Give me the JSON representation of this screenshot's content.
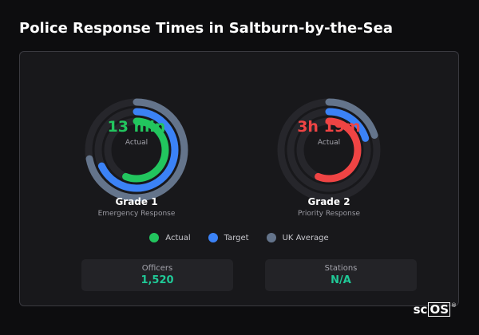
{
  "page": {
    "title": "Police Response Times in Saltburn-by-the-Sea"
  },
  "colors": {
    "actual_grade_1": "#22c55e",
    "actual_grade_2": "#ef4444",
    "target": "#3b82f6",
    "uk_average": "#64748b",
    "stat_value": "#20c997"
  },
  "gauges": [
    {
      "name": "Grade 1",
      "description": "Emergency Response",
      "value_text": "13 min",
      "value_label": "Actual",
      "rings": {
        "uk_average_fraction": 0.72,
        "target_fraction": 0.68,
        "actual_fraction": 0.56
      }
    },
    {
      "name": "Grade 2",
      "description": "Priority Response",
      "value_text": "3h 19m",
      "value_label": "Actual",
      "rings": {
        "uk_average_fraction": 0.2,
        "target_fraction": 0.2,
        "actual_fraction": 0.56
      }
    }
  ],
  "legend": [
    {
      "label": "Actual",
      "color": "#22c55e",
      "icon": "actual-dot"
    },
    {
      "label": "Target",
      "color": "#3b82f6",
      "icon": "target-dot"
    },
    {
      "label": "UK Average",
      "color": "#64748b",
      "icon": "uk-average-dot"
    }
  ],
  "stats": [
    {
      "label": "Officers",
      "value": "1,520"
    },
    {
      "label": "Stations",
      "value": "N/A"
    }
  ],
  "brand": {
    "prefix": "sc",
    "boxed": "OS",
    "mark": "®"
  }
}
